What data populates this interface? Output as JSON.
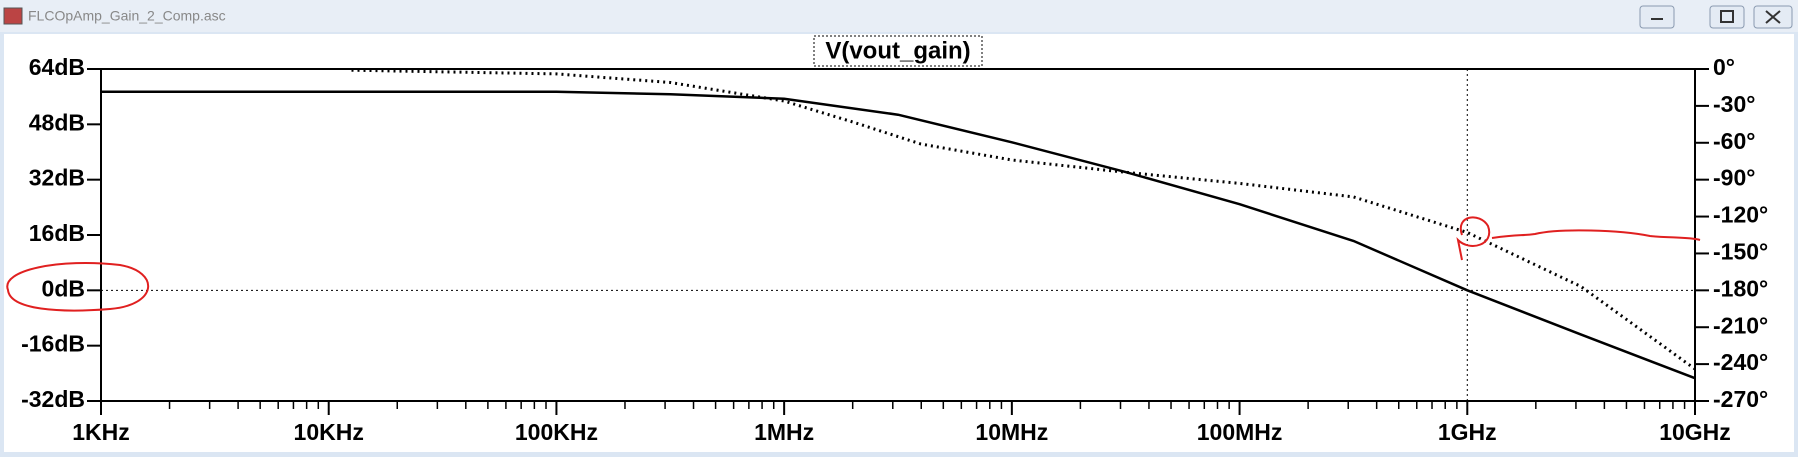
{
  "window": {
    "title": "FLCOpAmp_Gain_2_Comp.asc"
  },
  "chart_data": {
    "type": "line",
    "title": "V(vout_gain)",
    "xscale": "log",
    "xlim": [
      1000,
      10000000000
    ],
    "xticks": [
      {
        "value": 1000,
        "label": "1KHz"
      },
      {
        "value": 10000,
        "label": "10KHz"
      },
      {
        "value": 100000,
        "label": "100KHz"
      },
      {
        "value": 1000000,
        "label": "1MHz"
      },
      {
        "value": 10000000,
        "label": "10MHz"
      },
      {
        "value": 100000000,
        "label": "100MHz"
      },
      {
        "value": 1000000000,
        "label": "1GHz"
      },
      {
        "value": 10000000000,
        "label": "10GHz"
      }
    ],
    "ylim": [
      -32,
      64
    ],
    "yticks": [
      {
        "value": -32,
        "label": "-32dB"
      },
      {
        "value": -16,
        "label": "-16dB"
      },
      {
        "value": 0,
        "label": "0dB"
      },
      {
        "value": 16,
        "label": "16dB"
      },
      {
        "value": 32,
        "label": "32dB"
      },
      {
        "value": 48,
        "label": "48dB"
      },
      {
        "value": 64,
        "label": "64dB"
      }
    ],
    "y2lim": [
      -270,
      0
    ],
    "y2ticks": [
      {
        "value": -270,
        "label": "-270°"
      },
      {
        "value": -240,
        "label": "-240°"
      },
      {
        "value": -210,
        "label": "-210°"
      },
      {
        "value": -180,
        "label": "-180°"
      },
      {
        "value": -150,
        "label": "-150°"
      },
      {
        "value": -120,
        "label": "-120°"
      },
      {
        "value": -90,
        "label": "-90°"
      },
      {
        "value": -60,
        "label": "-60°"
      },
      {
        "value": -30,
        "label": "-30°"
      },
      {
        "value": 0,
        "label": "0°"
      }
    ],
    "grid_y": 0,
    "grid_x": 1000000000,
    "series": [
      {
        "color": "#000000",
        "dash": "solid",
        "x": [
          1000,
          100000,
          316228,
          1000000,
          3162278,
          10000000,
          31622777,
          100000000,
          316227766,
          1000000000,
          3162277660,
          10000000000
        ],
        "values": [
          57.4,
          57.4,
          56.7,
          55.4,
          50.8,
          42.8,
          34.2,
          24.9,
          14.3,
          0,
          -12.8,
          -25.4
        ]
      },
      {
        "color": "#000000",
        "dash": "dotted",
        "axis": "y2",
        "x": [
          12589,
          100000,
          316228,
          1000000,
          1995262,
          3981072,
          10000000,
          31622777,
          100000000,
          316227766,
          1000000000,
          3162277660,
          10000000000
        ],
        "values": [
          -1,
          -4,
          -11,
          -26,
          -43,
          -61,
          -74,
          -84,
          -93,
          -104,
          -133,
          -177,
          -244
        ]
      }
    ]
  }
}
